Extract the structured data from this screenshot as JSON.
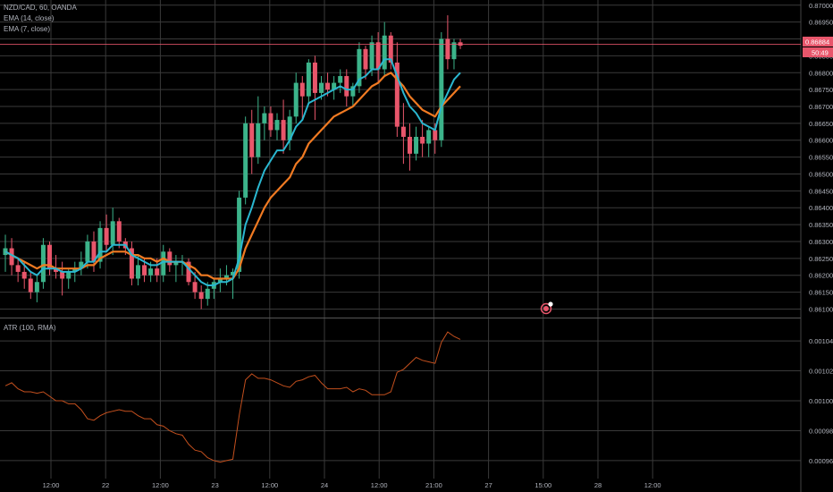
{
  "legend": {
    "symbol": "NZD/CAD, 60, OANDA",
    "ema1": "EMA (14, close)",
    "ema2": "EMA (7, close)",
    "atr": "ATR (100, RMA)"
  },
  "price_labels": {
    "last_price": "0.86884",
    "countdown": "50:49"
  },
  "colors": {
    "background": "#000000",
    "grid": "#3a3a3a",
    "up": "#3cb38a",
    "down": "#e8566b",
    "ema_fast": "#2ab7d0",
    "ema_slow": "#f07a22",
    "atr": "#c4501e",
    "axis_text": "#b2b5be",
    "last_price_bg": "#e8566b"
  },
  "chart_data": [
    {
      "type": "candlestick",
      "title": "NZD/CAD, 60, OANDA",
      "y_ticks": [
        "0.87000",
        "0.86950",
        "0.86900",
        "0.86850",
        "0.86800",
        "0.86750",
        "0.86700",
        "0.86650",
        "0.86600",
        "0.86550",
        "0.86500",
        "0.86450",
        "0.86400",
        "0.86350",
        "0.86300",
        "0.86250",
        "0.86200",
        "0.86150",
        "0.86100"
      ],
      "x_ticks": [
        "12:00",
        "22",
        "12:00",
        "23",
        "12:00",
        "24",
        "12:00",
        "21:00",
        "27",
        "15:00",
        "28",
        "12:00"
      ],
      "ylim": [
        0.8608,
        0.8701
      ],
      "candles": [
        {
          "o": 0.8626,
          "h": 0.8632,
          "l": 0.8621,
          "c": 0.8628
        },
        {
          "o": 0.8628,
          "h": 0.8631,
          "l": 0.862,
          "c": 0.8623
        },
        {
          "o": 0.8623,
          "h": 0.8625,
          "l": 0.8618,
          "c": 0.8621
        },
        {
          "o": 0.8621,
          "h": 0.8624,
          "l": 0.8616,
          "c": 0.8619
        },
        {
          "o": 0.8619,
          "h": 0.8621,
          "l": 0.8613,
          "c": 0.8615
        },
        {
          "o": 0.8615,
          "h": 0.862,
          "l": 0.8612,
          "c": 0.8618
        },
        {
          "o": 0.8618,
          "h": 0.8631,
          "l": 0.8616,
          "c": 0.8629
        },
        {
          "o": 0.8629,
          "h": 0.863,
          "l": 0.862,
          "c": 0.8622
        },
        {
          "o": 0.8622,
          "h": 0.8626,
          "l": 0.8619,
          "c": 0.8621
        },
        {
          "o": 0.8621,
          "h": 0.8624,
          "l": 0.8614,
          "c": 0.8619
        },
        {
          "o": 0.8619,
          "h": 0.8622,
          "l": 0.8616,
          "c": 0.8621
        },
        {
          "o": 0.8621,
          "h": 0.8624,
          "l": 0.8618,
          "c": 0.8622
        },
        {
          "o": 0.8622,
          "h": 0.8627,
          "l": 0.862,
          "c": 0.8624
        },
        {
          "o": 0.8624,
          "h": 0.8632,
          "l": 0.8622,
          "c": 0.863
        },
        {
          "o": 0.863,
          "h": 0.8633,
          "l": 0.8621,
          "c": 0.8624
        },
        {
          "o": 0.8624,
          "h": 0.8636,
          "l": 0.8622,
          "c": 0.8634
        },
        {
          "o": 0.8634,
          "h": 0.8638,
          "l": 0.8627,
          "c": 0.8629
        },
        {
          "o": 0.8629,
          "h": 0.864,
          "l": 0.8626,
          "c": 0.8636
        },
        {
          "o": 0.8636,
          "h": 0.8637,
          "l": 0.8628,
          "c": 0.863
        },
        {
          "o": 0.863,
          "h": 0.8631,
          "l": 0.8626,
          "c": 0.8628
        },
        {
          "o": 0.8628,
          "h": 0.863,
          "l": 0.8617,
          "c": 0.8619
        },
        {
          "o": 0.8619,
          "h": 0.8626,
          "l": 0.8617,
          "c": 0.8623
        },
        {
          "o": 0.8623,
          "h": 0.8625,
          "l": 0.8618,
          "c": 0.862
        },
        {
          "o": 0.862,
          "h": 0.8624,
          "l": 0.8618,
          "c": 0.8622
        },
        {
          "o": 0.8622,
          "h": 0.8625,
          "l": 0.8618,
          "c": 0.862
        },
        {
          "o": 0.862,
          "h": 0.8629,
          "l": 0.8618,
          "c": 0.8627
        },
        {
          "o": 0.8627,
          "h": 0.8628,
          "l": 0.8621,
          "c": 0.8623
        },
        {
          "o": 0.8623,
          "h": 0.8626,
          "l": 0.8618,
          "c": 0.8624
        },
        {
          "o": 0.8624,
          "h": 0.8626,
          "l": 0.862,
          "c": 0.8624
        },
        {
          "o": 0.8624,
          "h": 0.8625,
          "l": 0.8617,
          "c": 0.8618
        },
        {
          "o": 0.8618,
          "h": 0.8621,
          "l": 0.8613,
          "c": 0.8615
        },
        {
          "o": 0.8615,
          "h": 0.8617,
          "l": 0.861,
          "c": 0.8613
        },
        {
          "o": 0.8613,
          "h": 0.8618,
          "l": 0.8611,
          "c": 0.8616
        },
        {
          "o": 0.8616,
          "h": 0.8619,
          "l": 0.8613,
          "c": 0.8618
        },
        {
          "o": 0.8618,
          "h": 0.8622,
          "l": 0.8615,
          "c": 0.8619
        },
        {
          "o": 0.8619,
          "h": 0.8623,
          "l": 0.8617,
          "c": 0.862
        },
        {
          "o": 0.862,
          "h": 0.8622,
          "l": 0.8613,
          "c": 0.8621
        },
        {
          "o": 0.8621,
          "h": 0.8645,
          "l": 0.8619,
          "c": 0.8643
        },
        {
          "o": 0.8643,
          "h": 0.8667,
          "l": 0.8641,
          "c": 0.8665
        },
        {
          "o": 0.8665,
          "h": 0.8669,
          "l": 0.865,
          "c": 0.8655
        },
        {
          "o": 0.8655,
          "h": 0.8673,
          "l": 0.8653,
          "c": 0.8665
        },
        {
          "o": 0.8665,
          "h": 0.867,
          "l": 0.866,
          "c": 0.8668
        },
        {
          "o": 0.8668,
          "h": 0.867,
          "l": 0.8661,
          "c": 0.8663
        },
        {
          "o": 0.8663,
          "h": 0.8668,
          "l": 0.866,
          "c": 0.8666
        },
        {
          "o": 0.8666,
          "h": 0.8672,
          "l": 0.8656,
          "c": 0.866
        },
        {
          "o": 0.866,
          "h": 0.8669,
          "l": 0.8657,
          "c": 0.8667
        },
        {
          "o": 0.8667,
          "h": 0.868,
          "l": 0.8665,
          "c": 0.8677
        },
        {
          "o": 0.8677,
          "h": 0.8679,
          "l": 0.8666,
          "c": 0.8673
        },
        {
          "o": 0.8673,
          "h": 0.8684,
          "l": 0.8671,
          "c": 0.8683
        },
        {
          "o": 0.8683,
          "h": 0.8685,
          "l": 0.8666,
          "c": 0.8674
        },
        {
          "o": 0.8674,
          "h": 0.8679,
          "l": 0.8672,
          "c": 0.8677
        },
        {
          "o": 0.8677,
          "h": 0.868,
          "l": 0.8673,
          "c": 0.8675
        },
        {
          "o": 0.8675,
          "h": 0.8679,
          "l": 0.8672,
          "c": 0.8677
        },
        {
          "o": 0.8677,
          "h": 0.8681,
          "l": 0.8674,
          "c": 0.8679
        },
        {
          "o": 0.8679,
          "h": 0.8681,
          "l": 0.867,
          "c": 0.8673
        },
        {
          "o": 0.8673,
          "h": 0.8677,
          "l": 0.867,
          "c": 0.8676
        },
        {
          "o": 0.8676,
          "h": 0.8689,
          "l": 0.8674,
          "c": 0.8687
        },
        {
          "o": 0.8687,
          "h": 0.8688,
          "l": 0.8678,
          "c": 0.8681
        },
        {
          "o": 0.8681,
          "h": 0.8691,
          "l": 0.8679,
          "c": 0.8689
        },
        {
          "o": 0.8689,
          "h": 0.8692,
          "l": 0.8677,
          "c": 0.8681
        },
        {
          "o": 0.8681,
          "h": 0.8695,
          "l": 0.8679,
          "c": 0.8691
        },
        {
          "o": 0.8691,
          "h": 0.8692,
          "l": 0.8681,
          "c": 0.8683
        },
        {
          "o": 0.8683,
          "h": 0.8689,
          "l": 0.8661,
          "c": 0.8664
        },
        {
          "o": 0.8664,
          "h": 0.8671,
          "l": 0.8653,
          "c": 0.8661
        },
        {
          "o": 0.8661,
          "h": 0.8665,
          "l": 0.8651,
          "c": 0.8656
        },
        {
          "o": 0.8656,
          "h": 0.8664,
          "l": 0.8654,
          "c": 0.8661
        },
        {
          "o": 0.8661,
          "h": 0.8666,
          "l": 0.8655,
          "c": 0.8659
        },
        {
          "o": 0.8659,
          "h": 0.8664,
          "l": 0.8655,
          "c": 0.8663
        },
        {
          "o": 0.8663,
          "h": 0.8665,
          "l": 0.8656,
          "c": 0.866
        },
        {
          "o": 0.866,
          "h": 0.8692,
          "l": 0.8658,
          "c": 0.869
        },
        {
          "o": 0.869,
          "h": 0.8697,
          "l": 0.8681,
          "c": 0.8684
        },
        {
          "o": 0.8684,
          "h": 0.869,
          "l": 0.8681,
          "c": 0.8689
        },
        {
          "o": 0.8689,
          "h": 0.869,
          "l": 0.8687,
          "c": 0.8688
        }
      ],
      "ema_fast": [
        0.8627,
        0.8626,
        0.8625,
        0.8623,
        0.8621,
        0.862,
        0.8622,
        0.8622,
        0.8622,
        0.8621,
        0.8621,
        0.8621,
        0.8622,
        0.8624,
        0.8624,
        0.8627,
        0.8627,
        0.8629,
        0.8629,
        0.8629,
        0.8626,
        0.8625,
        0.8624,
        0.8623,
        0.8623,
        0.8624,
        0.8624,
        0.8624,
        0.8624,
        0.8622,
        0.862,
        0.8618,
        0.8617,
        0.8617,
        0.8618,
        0.8618,
        0.8619,
        0.8625,
        0.8635,
        0.864,
        0.8646,
        0.8651,
        0.8654,
        0.8657,
        0.8657,
        0.866,
        0.8664,
        0.8666,
        0.8671,
        0.8672,
        0.8673,
        0.8674,
        0.8675,
        0.8676,
        0.8675,
        0.8675,
        0.8678,
        0.8679,
        0.8681,
        0.8681,
        0.8684,
        0.8684,
        0.8679,
        0.8674,
        0.867,
        0.8668,
        0.8665,
        0.8664,
        0.8663,
        0.867,
        0.8674,
        0.8678,
        0.868
      ],
      "ema_slow": [
        0.8627,
        0.8626,
        0.8625,
        0.8624,
        0.8623,
        0.8622,
        0.8623,
        0.8623,
        0.8622,
        0.8622,
        0.8622,
        0.8622,
        0.8622,
        0.8623,
        0.8623,
        0.8625,
        0.8626,
        0.8627,
        0.8627,
        0.8627,
        0.8626,
        0.8626,
        0.8625,
        0.8625,
        0.8624,
        0.8625,
        0.8624,
        0.8624,
        0.8624,
        0.8623,
        0.8622,
        0.862,
        0.862,
        0.8619,
        0.8619,
        0.8619,
        0.8619,
        0.8622,
        0.8628,
        0.8632,
        0.8636,
        0.864,
        0.8643,
        0.8645,
        0.8647,
        0.8649,
        0.8653,
        0.8655,
        0.8659,
        0.8661,
        0.8663,
        0.8665,
        0.8667,
        0.8668,
        0.8669,
        0.867,
        0.8672,
        0.8674,
        0.8676,
        0.8677,
        0.8679,
        0.868,
        0.8678,
        0.8676,
        0.8673,
        0.8671,
        0.8669,
        0.8668,
        0.8667,
        0.867,
        0.8672,
        0.8674,
        0.8676
      ],
      "last_price": 0.86884
    },
    {
      "type": "line",
      "title": "ATR (100, RMA)",
      "y_ticks": [
        "0.00104",
        "0.00102",
        "0.00100",
        "0.00098",
        "0.00096"
      ],
      "ylim": [
        0.000948,
        0.001055
      ],
      "values": [
        0.00101,
        0.001012,
        0.001008,
        0.001006,
        0.001006,
        0.001005,
        0.001006,
        0.001003,
        0.001,
        0.001,
        0.000998,
        0.000998,
        0.000994,
        0.000988,
        0.000987,
        0.00099,
        0.000992,
        0.000993,
        0.000994,
        0.000993,
        0.000993,
        0.00099,
        0.000988,
        0.000988,
        0.000984,
        0.000983,
        0.00098,
        0.000978,
        0.000977,
        0.000971,
        0.000967,
        0.000966,
        0.000962,
        0.00096,
        0.000959,
        0.00096,
        0.000961,
        0.00099,
        0.001014,
        0.001018,
        0.001015,
        0.001015,
        0.001014,
        0.001012,
        0.00101,
        0.001009,
        0.001013,
        0.001014,
        0.001016,
        0.001017,
        0.001012,
        0.001008,
        0.001008,
        0.001008,
        0.001009,
        0.001006,
        0.001008,
        0.001007,
        0.001004,
        0.001004,
        0.001004,
        0.001006,
        0.001019,
        0.001021,
        0.001025,
        0.001029,
        0.001027,
        0.001026,
        0.001025,
        0.001039,
        0.001046,
        0.001043,
        0.001041
      ]
    }
  ]
}
